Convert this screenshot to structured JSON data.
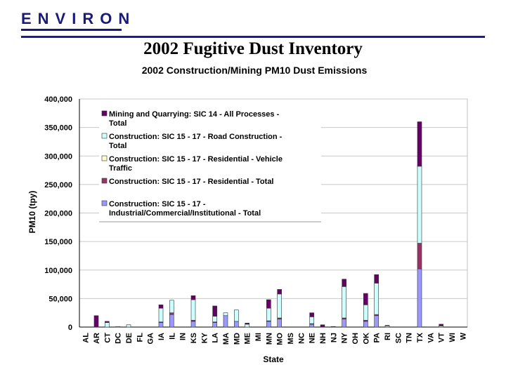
{
  "logo": {
    "text": "ENVIRON"
  },
  "slide": {
    "title": "2002 Fugitive Dust Inventory"
  },
  "chart_data": {
    "type": "bar",
    "stacked": true,
    "title": "2002 Construction/Mining PM10 Dust Emissions",
    "xlabel": "State",
    "ylabel": "PM10 (tpy)",
    "ylim": [
      0,
      400000
    ],
    "yticks": [
      0,
      50000,
      100000,
      150000,
      200000,
      250000,
      300000,
      350000,
      400000
    ],
    "ytick_labels": [
      "0",
      "50,000",
      "100,000",
      "150,000",
      "200,000",
      "250,000",
      "300,000",
      "350,000",
      "400,000"
    ],
    "legend_position": "top-left",
    "categories": [
      "AL",
      "AR",
      "CT",
      "DC",
      "DE",
      "FL",
      "GA",
      "IA",
      "IL",
      "IN",
      "KS",
      "KY",
      "LA",
      "MA",
      "MD",
      "ME",
      "MI",
      "MN",
      "MO",
      "MS",
      "NC",
      "NE",
      "NH",
      "NJ",
      "NY",
      "OH",
      "OK",
      "PA",
      "RI",
      "SC",
      "TN",
      "TX",
      "VA",
      "VT",
      "WI",
      "W"
    ],
    "series": [
      {
        "name": "Construction: SIC 15 - 17 - Industrial/Commercial/Institutional - Total",
        "color": "#9999ff",
        "values": [
          0,
          0,
          0,
          0,
          0,
          0,
          0,
          8000,
          22000,
          0,
          10000,
          0,
          8000,
          20000,
          10000,
          0,
          0,
          10000,
          14000,
          0,
          0,
          5000,
          0,
          0,
          14000,
          0,
          10000,
          20000,
          0,
          0,
          0,
          102000,
          0,
          0,
          0,
          0
        ]
      },
      {
        "name": "Construction: SIC 15 - 17 - Residential - Total",
        "color": "#993366",
        "values": [
          0,
          0,
          0,
          0,
          0,
          0,
          0,
          1000,
          3000,
          0,
          2000,
          0,
          1000,
          0,
          0,
          0,
          0,
          1000,
          2000,
          0,
          0,
          1000,
          0,
          0,
          2000,
          0,
          2000,
          2000,
          0,
          0,
          0,
          45000,
          0,
          0,
          0,
          0
        ]
      },
      {
        "name": "Construction: SIC 15 - 17 - Residential - Vehicle Traffic",
        "color": "#ffffcc",
        "values": [
          0,
          0,
          0,
          0,
          0,
          0,
          0,
          0,
          0,
          0,
          0,
          0,
          0,
          0,
          0,
          0,
          0,
          0,
          0,
          0,
          0,
          0,
          0,
          0,
          0,
          0,
          0,
          0,
          0,
          0,
          0,
          0,
          0,
          0,
          0,
          0
        ]
      },
      {
        "name": "Construction: SIC 15 - 17 - Road Construction - Total",
        "color": "#ccffff",
        "values": [
          0,
          0,
          8000,
          1000,
          4000,
          0,
          0,
          24000,
          22000,
          0,
          36000,
          0,
          10000,
          5000,
          20000,
          5000,
          0,
          22000,
          42000,
          0,
          0,
          12000,
          0,
          0,
          55000,
          0,
          27000,
          55000,
          2000,
          0,
          0,
          135000,
          0,
          2000,
          0,
          0
        ]
      },
      {
        "name": "Mining and Quarrying: SIC 14 - All Processes - Total",
        "color": "#660066",
        "values": [
          0,
          20000,
          2000,
          0,
          0,
          0,
          0,
          6000,
          0,
          0,
          7000,
          0,
          18000,
          0,
          0,
          2000,
          0,
          15000,
          8000,
          0,
          0,
          7000,
          4000,
          1000,
          13000,
          0,
          20000,
          15000,
          1000,
          0,
          0,
          78000,
          0,
          3000,
          0,
          0
        ]
      }
    ]
  }
}
